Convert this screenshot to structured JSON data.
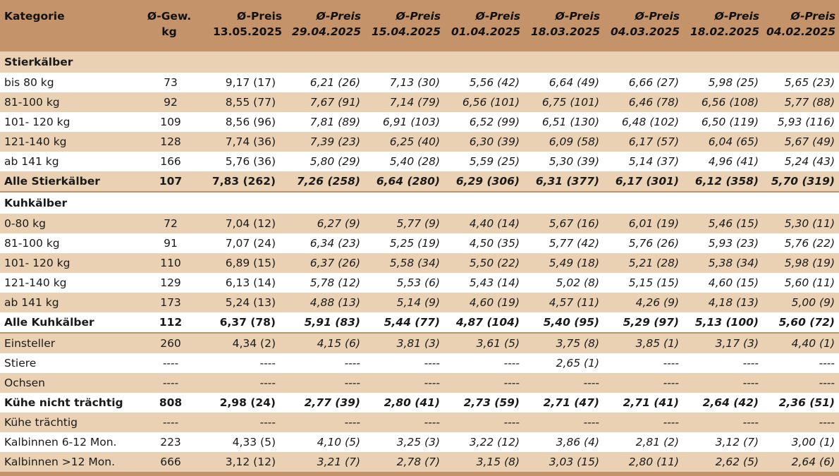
{
  "header": {
    "kategorie": "Kategorie",
    "gew_line1": "Ø-Gew.",
    "gew_line2": "kg",
    "price_label": "Ø-Preis",
    "dates": [
      "13.05.2025",
      "29.04.2025",
      "15.04.2025",
      "01.04.2025",
      "18.03.2025",
      "04.03.2025",
      "18.02.2025",
      "04.02.2025"
    ]
  },
  "colors": {
    "header_bg": "#c4936a",
    "band": "#ead1b3",
    "white": "#ffffff"
  },
  "rows": [
    {
      "type": "section",
      "label": "Stierkälber",
      "bg": "tan"
    },
    {
      "type": "data",
      "label": "bis 80 kg",
      "weight": "73",
      "values": [
        "9,17 (17)",
        "6,21 (26)",
        "7,13 (30)",
        "5,56 (42)",
        "6,64 (49)",
        "6,66 (27)",
        "5,98 (25)",
        "5,65 (23)"
      ],
      "bg": "wht"
    },
    {
      "type": "data",
      "label": "81-100 kg",
      "weight": "92",
      "values": [
        "8,55 (77)",
        "7,67 (91)",
        "7,14 (79)",
        "6,56 (101)",
        "6,75 (101)",
        "6,46 (78)",
        "6,56 (108)",
        "5,77 (88)"
      ],
      "bg": "tan"
    },
    {
      "type": "data",
      "label": "101- 120 kg",
      "weight": "109",
      "values": [
        "8,56 (96)",
        "7,81 (89)",
        "6,91 (103)",
        "6,52 (99)",
        "6,51 (130)",
        "6,48 (102)",
        "6,50 (119)",
        "5,93 (116)"
      ],
      "bg": "wht"
    },
    {
      "type": "data",
      "label": "121-140 kg",
      "weight": "128",
      "values": [
        "7,74 (36)",
        "7,39 (23)",
        "6,25 (40)",
        "6,30 (39)",
        "6,09 (58)",
        "6,17 (57)",
        "6,04 (65)",
        "5,67 (49)"
      ],
      "bg": "tan"
    },
    {
      "type": "data",
      "label": "ab 141 kg",
      "weight": "166",
      "values": [
        "5,76 (36)",
        "5,80 (29)",
        "5,40 (28)",
        "5,59 (25)",
        "5,30 (39)",
        "5,14 (37)",
        "4,96 (41)",
        "5,24 (43)"
      ],
      "bg": "wht"
    },
    {
      "type": "total",
      "label": "Alle Stierkälber",
      "weight": "107",
      "values": [
        "7,83 (262)",
        "7,26 (258)",
        "6,64 (280)",
        "6,29 (306)",
        "6,31 (377)",
        "6,17 (301)",
        "6,12 (358)",
        "5,70 (319)"
      ],
      "bg": "tan",
      "border": "bottom"
    },
    {
      "type": "section",
      "label": "Kuhkälber",
      "bg": "wht"
    },
    {
      "type": "data",
      "label": "0-80 kg",
      "weight": "72",
      "values": [
        "7,04 (12)",
        "6,27 (9)",
        "5,77 (9)",
        "4,40 (14)",
        "5,67 (16)",
        "6,01 (19)",
        "5,46 (15)",
        "5,30 (11)"
      ],
      "bg": "tan"
    },
    {
      "type": "data",
      "label": "81-100 kg",
      "weight": "91",
      "values": [
        "7,07 (24)",
        "6,34 (23)",
        "5,25 (19)",
        "4,50 (35)",
        "5,77 (42)",
        "5,76 (26)",
        "5,93 (23)",
        "5,76 (22)"
      ],
      "bg": "wht"
    },
    {
      "type": "data",
      "label": "101- 120 kg",
      "weight": "110",
      "values": [
        "6,89 (15)",
        "6,37 (26)",
        "5,58 (34)",
        "5,50 (22)",
        "5,49 (18)",
        "5,21 (28)",
        "5,38 (34)",
        "5,98 (19)"
      ],
      "bg": "tan"
    },
    {
      "type": "data",
      "label": "121-140 kg",
      "weight": "129",
      "values": [
        "6,13 (14)",
        "5,78 (12)",
        "5,53 (6)",
        "5,43 (14)",
        "5,02 (8)",
        "5,15 (15)",
        "4,60 (15)",
        "5,60 (11)"
      ],
      "bg": "wht"
    },
    {
      "type": "data",
      "label": "ab 141 kg",
      "weight": "173",
      "values": [
        "5,24 (13)",
        "4,88 (13)",
        "5,14 (9)",
        "4,60 (19)",
        "4,57 (11)",
        "4,26 (9)",
        "4,18 (13)",
        "5,00 (9)"
      ],
      "bg": "tan"
    },
    {
      "type": "total",
      "label": "Alle Kuhkälber",
      "weight": "112",
      "values": [
        "6,37 (78)",
        "5,91 (83)",
        "5,44 (77)",
        "4,87 (104)",
        "5,40 (95)",
        "5,29 (97)",
        "5,13 (100)",
        "5,60 (72)"
      ],
      "bg": "wht",
      "border": "bottom"
    },
    {
      "type": "data",
      "label": "Einsteller",
      "weight": "260",
      "values": [
        "4,34 (2)",
        "4,15 (6)",
        "3,81 (3)",
        "3,61 (5)",
        "3,75 (8)",
        "3,85 (1)",
        "3,17 (3)",
        "4,40 (1)"
      ],
      "bg": "tan"
    },
    {
      "type": "data",
      "label": "Stiere",
      "weight": "----",
      "values": [
        "----",
        "----",
        "----",
        "----",
        "2,65 (1)",
        "----",
        "----",
        "----"
      ],
      "bg": "wht"
    },
    {
      "type": "data",
      "label": "Ochsen",
      "weight": "----",
      "values": [
        "----",
        "----",
        "----",
        "----",
        "----",
        "----",
        "----",
        "----"
      ],
      "bg": "tan"
    },
    {
      "type": "total",
      "label": "Kühe nicht trächtig",
      "weight": "808",
      "values": [
        "2,98 (24)",
        "2,77 (39)",
        "2,80 (41)",
        "2,73 (59)",
        "2,71 (47)",
        "2,71 (41)",
        "2,64 (42)",
        "2,36 (51)"
      ],
      "bg": "wht"
    },
    {
      "type": "data",
      "label": "Kühe trächtig",
      "weight": "----",
      "values": [
        "----",
        "----",
        "----",
        "----",
        "----",
        "----",
        "----",
        "----"
      ],
      "bg": "tan"
    },
    {
      "type": "data",
      "label": "Kalbinnen 6-12 Mon.",
      "weight": "223",
      "values": [
        "4,33 (5)",
        "4,10 (5)",
        "3,25 (3)",
        "3,22 (12)",
        "3,86 (4)",
        "2,81 (2)",
        "3,12 (7)",
        "3,00 (1)"
      ],
      "bg": "wht"
    },
    {
      "type": "data",
      "label": "Kalbinnen >12 Mon.",
      "weight": "666",
      "values": [
        "3,12 (12)",
        "3,21 (7)",
        "2,78 (7)",
        "3,15 (8)",
        "3,03 (15)",
        "2,80 (11)",
        "2,62 (5)",
        "2,64 (6)"
      ],
      "bg": "tan"
    }
  ]
}
